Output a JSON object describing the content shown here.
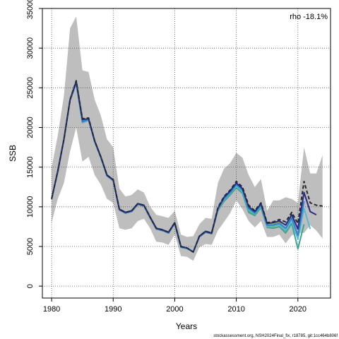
{
  "chart_data": {
    "type": "line",
    "title": "",
    "xlabel": "Years",
    "ylabel": "SSB",
    "xlim": [
      1978.5,
      2025.3
    ],
    "ylim": [
      -1500,
      35000
    ],
    "xticks": [
      1980,
      1990,
      2000,
      2010,
      2020
    ],
    "yticks": [
      0,
      5000,
      10000,
      15000,
      20000,
      25000,
      30000,
      35000
    ],
    "grid": true,
    "annotation": "rho -18.1%",
    "footer": "stockassessment.org, NSH2024Final_fix, r18785, git:1cc464b806f",
    "band": {
      "name": "confidence interval",
      "color": "#bebebe",
      "x": [
        1980,
        1981,
        1982,
        1983,
        1984,
        1985,
        1986,
        1987,
        1988,
        1989,
        1990,
        1991,
        1992,
        1993,
        1994,
        1995,
        1996,
        1997,
        1998,
        1999,
        2000,
        2001,
        2002,
        2003,
        2004,
        2005,
        2006,
        2007,
        2008,
        2009,
        2010,
        2011,
        2012,
        2013,
        2014,
        2015,
        2016,
        2017,
        2018,
        2019,
        2020,
        2021,
        2022,
        2023,
        2024
      ],
      "upper": [
        15000,
        19000,
        24000,
        32500,
        34000,
        27200,
        27000,
        23500,
        21500,
        18500,
        17500,
        12300,
        11300,
        11500,
        12200,
        11800,
        10000,
        9000,
        8800,
        8600,
        9500,
        6500,
        6200,
        6300,
        7800,
        8600,
        8500,
        13000,
        14800,
        15500,
        16800,
        16200,
        14000,
        12500,
        13500,
        9500,
        10800,
        10800,
        11200,
        11000,
        10500,
        17500,
        14200,
        14200,
        16500
      ],
      "lower": [
        8000,
        11000,
        13000,
        17000,
        20000,
        15700,
        16300,
        14000,
        12800,
        11000,
        10500,
        7300,
        7100,
        7300,
        8200,
        8500,
        7300,
        5600,
        5500,
        5200,
        6500,
        3800,
        3700,
        3200,
        4900,
        5300,
        5200,
        7000,
        8100,
        9200,
        10800,
        9700,
        8200,
        7400,
        8200,
        6200,
        6200,
        6500,
        5400,
        6400,
        6700,
        6700,
        7700,
        7000,
        6000
      ]
    },
    "series": [
      {
        "color": "#2a2a2a",
        "dashed": true,
        "x": [
          1980,
          1981,
          1982,
          1983,
          1984,
          1985,
          1986,
          1987,
          1988,
          1989,
          1990,
          1991,
          1992,
          1993,
          1994,
          1995,
          1996,
          1997,
          1998,
          1999,
          2000,
          2001,
          2002,
          2003,
          2004,
          2005,
          2006,
          2007,
          2008,
          2009,
          2010,
          2011,
          2012,
          2013,
          2014,
          2015,
          2016,
          2017,
          2018,
          2019,
          2020,
          2021,
          2022,
          2023,
          2024
        ],
        "values": [
          11000,
          14500,
          18500,
          23500,
          25900,
          21100,
          21200,
          18300,
          16300,
          14000,
          13400,
          9700,
          9300,
          9500,
          10400,
          10200,
          8700,
          7300,
          7100,
          6800,
          8000,
          5000,
          4800,
          4300,
          6300,
          6900,
          6700,
          9900,
          11300,
          12100,
          13200,
          12500,
          10200,
          9500,
          10500,
          8000,
          8100,
          8400,
          8100,
          9300,
          7900,
          13200,
          10500,
          10200,
          10100
        ]
      },
      {
        "color": "#2b2c84",
        "dashed": false,
        "x": [
          1980,
          1981,
          1982,
          1983,
          1984,
          1985,
          1986,
          1987,
          1988,
          1989,
          1990,
          1991,
          1992,
          1993,
          1994,
          1995,
          1996,
          1997,
          1998,
          1999,
          2000,
          2001,
          2002,
          2003,
          2004,
          2005,
          2006,
          2007,
          2008,
          2009,
          2010,
          2011,
          2012,
          2013,
          2014,
          2015,
          2016,
          2017,
          2018,
          2019,
          2020,
          2021,
          2022,
          2023
        ],
        "values": [
          11000,
          14500,
          18500,
          23500,
          25800,
          21000,
          21100,
          18300,
          16300,
          14000,
          13400,
          9700,
          9300,
          9500,
          10400,
          10200,
          8700,
          7300,
          7100,
          6800,
          8000,
          5000,
          4800,
          4300,
          6300,
          6900,
          6700,
          9800,
          11200,
          12000,
          13000,
          12300,
          10000,
          9400,
          10400,
          7900,
          8000,
          8200,
          7700,
          9000,
          7200,
          11800,
          9400,
          9000
        ]
      },
      {
        "color": "#3a7fd0",
        "dashed": false,
        "x": [
          1980,
          1981,
          1982,
          1983,
          1984,
          1985,
          1986,
          1987,
          1988,
          1989,
          1990,
          1991,
          1992,
          1993,
          1994,
          1995,
          1996,
          1997,
          1998,
          1999,
          2000,
          2001,
          2002,
          2003,
          2004,
          2005,
          2006,
          2007,
          2008,
          2009,
          2010,
          2011,
          2012,
          2013,
          2014,
          2015,
          2016,
          2017,
          2018,
          2019,
          2020,
          2021
        ],
        "values": [
          11000,
          14400,
          18500,
          23400,
          25600,
          20700,
          21000,
          18200,
          16200,
          13900,
          13300,
          9600,
          9200,
          9400,
          10300,
          10100,
          8600,
          7200,
          7000,
          6700,
          7900,
          4900,
          4800,
          4300,
          6200,
          6800,
          6600,
          9700,
          11000,
          11800,
          12800,
          12100,
          9800,
          9200,
          10200,
          7700,
          7700,
          7900,
          7300,
          8600,
          6400,
          10700
        ]
      },
      {
        "color": "#56b8d6",
        "dashed": false,
        "x": [
          1980,
          1981,
          1982,
          1983,
          1984,
          1985,
          1986,
          1987,
          1988,
          1989,
          1990,
          1991,
          1992,
          1993,
          1994,
          1995,
          1996,
          1997,
          1998,
          1999,
          2000,
          2001,
          2002,
          2003,
          2004,
          2005,
          2006,
          2007,
          2008,
          2009,
          2010,
          2011,
          2012,
          2013,
          2014,
          2015,
          2016,
          2017,
          2018,
          2019,
          2020,
          2021,
          2022
        ],
        "values": [
          11000,
          14400,
          18400,
          23400,
          25500,
          20600,
          20900,
          18200,
          16200,
          13900,
          13300,
          9600,
          9200,
          9400,
          10300,
          10100,
          8600,
          7200,
          7000,
          6700,
          7900,
          4900,
          4700,
          4300,
          6200,
          6800,
          6600,
          9600,
          10900,
          11700,
          12600,
          11900,
          9600,
          9100,
          10100,
          7500,
          7600,
          7700,
          7000,
          8300,
          5900,
          9800,
          7200
        ]
      },
      {
        "color": "#3aa693",
        "dashed": false,
        "x": [
          1980,
          1981,
          1982,
          1983,
          1984,
          1985,
          1986,
          1987,
          1988,
          1989,
          1990,
          1991,
          1992,
          1993,
          1994,
          1995,
          1996,
          1997,
          1998,
          1999,
          2000,
          2001,
          2002,
          2003,
          2004,
          2005,
          2006,
          2007,
          2008,
          2009,
          2010,
          2011,
          2012,
          2013,
          2014,
          2015,
          2016,
          2017,
          2018,
          2019,
          2020,
          2021
        ],
        "values": [
          11000,
          14500,
          18500,
          23500,
          25700,
          20900,
          21100,
          18300,
          16300,
          14000,
          13400,
          9700,
          9300,
          9500,
          10400,
          10200,
          8700,
          7300,
          7100,
          6800,
          8000,
          5000,
          4800,
          4300,
          6300,
          6900,
          6700,
          9500,
          10700,
          11500,
          12400,
          11700,
          9300,
          8900,
          9900,
          7400,
          7300,
          7500,
          6700,
          7900,
          4700,
          7800
        ]
      },
      {
        "color": "#6cbd45",
        "dashed": false,
        "x": [
          1980,
          1981,
          1982,
          1983,
          1984,
          1985,
          1986,
          1987,
          1988,
          1989,
          1990,
          1991,
          1992,
          1993,
          1994,
          1995,
          1996,
          1997,
          1998,
          1999,
          2000,
          2001,
          2002,
          2003,
          2004,
          2005,
          2006,
          2007,
          2008,
          2009,
          2010,
          2011,
          2012,
          2013,
          2014,
          2015,
          2016,
          2017,
          2018,
          2019
        ],
        "values": [
          11000,
          14500,
          18500,
          23500,
          25800,
          21000,
          21100,
          18300,
          16300,
          14000,
          13400,
          9700,
          9300,
          9500,
          10400,
          10200,
          8700,
          7300,
          7100,
          6800,
          8000,
          5000,
          4800,
          4300,
          6300,
          6900,
          6700,
          9600,
          10800,
          11600,
          12500,
          11800,
          9500,
          9000,
          10000,
          7600,
          7500,
          7800,
          6900,
          9300
        ]
      },
      {
        "color": "#a8a832",
        "dashed": false,
        "x": [
          1980,
          1981,
          1982,
          1983,
          1984,
          1985,
          1986,
          1987,
          1988,
          1989,
          1990,
          1991,
          1992,
          1993,
          1994,
          1995,
          1996,
          1997,
          1998,
          1999,
          2000,
          2001,
          2002,
          2003,
          2004,
          2005,
          2006,
          2007,
          2008,
          2009,
          2010,
          2011,
          2012,
          2013,
          2014,
          2015,
          2016,
          2017,
          2018
        ],
        "values": [
          11000,
          14500,
          18500,
          23500,
          25800,
          21000,
          21100,
          18300,
          16300,
          14000,
          13400,
          9700,
          9300,
          9500,
          10400,
          10200,
          8700,
          7300,
          7100,
          6800,
          8000,
          5000,
          4800,
          4300,
          6300,
          6900,
          6700,
          9700,
          11000,
          11800,
          12800,
          12100,
          9700,
          9200,
          10200,
          7800,
          7800,
          8000,
          7300
        ]
      }
    ]
  }
}
